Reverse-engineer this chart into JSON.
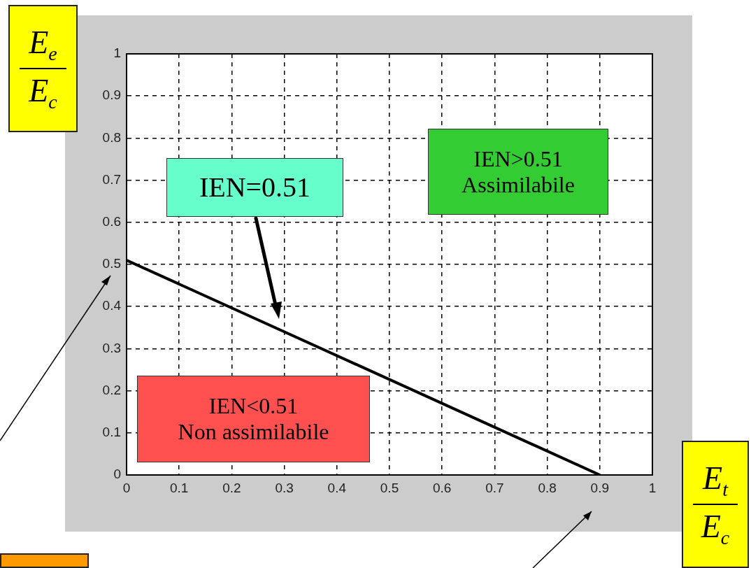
{
  "chart_data": {
    "type": "line",
    "xlabel": "E$_{t}$\nE$_{c}$",
    "ylabel": "E$_{e}$\nE$_{c}$",
    "series": [
      {
        "color": "#000000",
        "x": [
          0,
          0.9
        ],
        "values": [
          0.51,
          0
        ]
      }
    ],
    "xlim": [
      0,
      1
    ],
    "xticks": [
      0,
      0.1,
      0.2,
      0.3,
      0.4,
      0.5,
      0.6,
      0.7,
      0.8,
      0.9,
      1
    ],
    "ylim": [
      0,
      1
    ],
    "yticks": [
      0,
      0.1,
      0.2,
      0.3,
      0.4,
      0.5,
      0.6,
      0.7,
      0.8,
      0.9,
      1
    ],
    "grid": true,
    "marker": "none",
    "line_style": "solid",
    "annotations": [
      "IEN=0.51",
      "IEN>0.51\nAssimilabile",
      "IEN<0.51\nNon assimilabile"
    ]
  }
}
